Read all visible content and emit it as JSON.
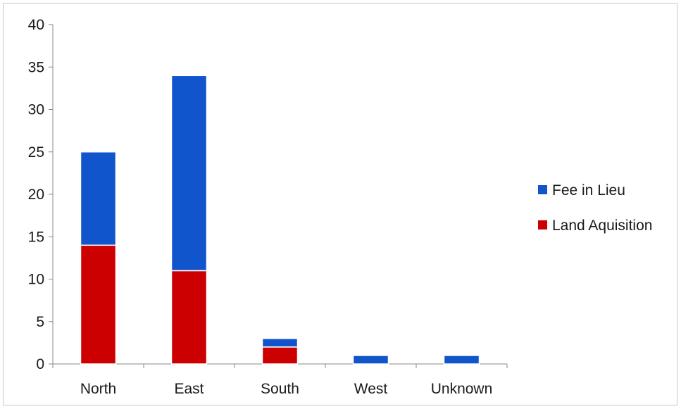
{
  "chart_data": {
    "type": "bar",
    "stacked": true,
    "title": "",
    "xlabel": "",
    "ylabel": "",
    "categories": [
      "North",
      "East",
      "South",
      "West",
      "Unknown"
    ],
    "series": [
      {
        "name": "Land Aquisition",
        "color": "#cc0000",
        "values": [
          14,
          11,
          2,
          0,
          0
        ]
      },
      {
        "name": "Fee in Lieu",
        "color": "#1155cc",
        "values": [
          11,
          23,
          1,
          1,
          1
        ]
      }
    ],
    "ylim": [
      0,
      40
    ],
    "yticks": [
      0,
      5,
      10,
      15,
      20,
      25,
      30,
      35,
      40
    ],
    "grid": false,
    "legend_position": "right",
    "legend_order": [
      "Fee in Lieu",
      "Land Aquisition"
    ]
  }
}
